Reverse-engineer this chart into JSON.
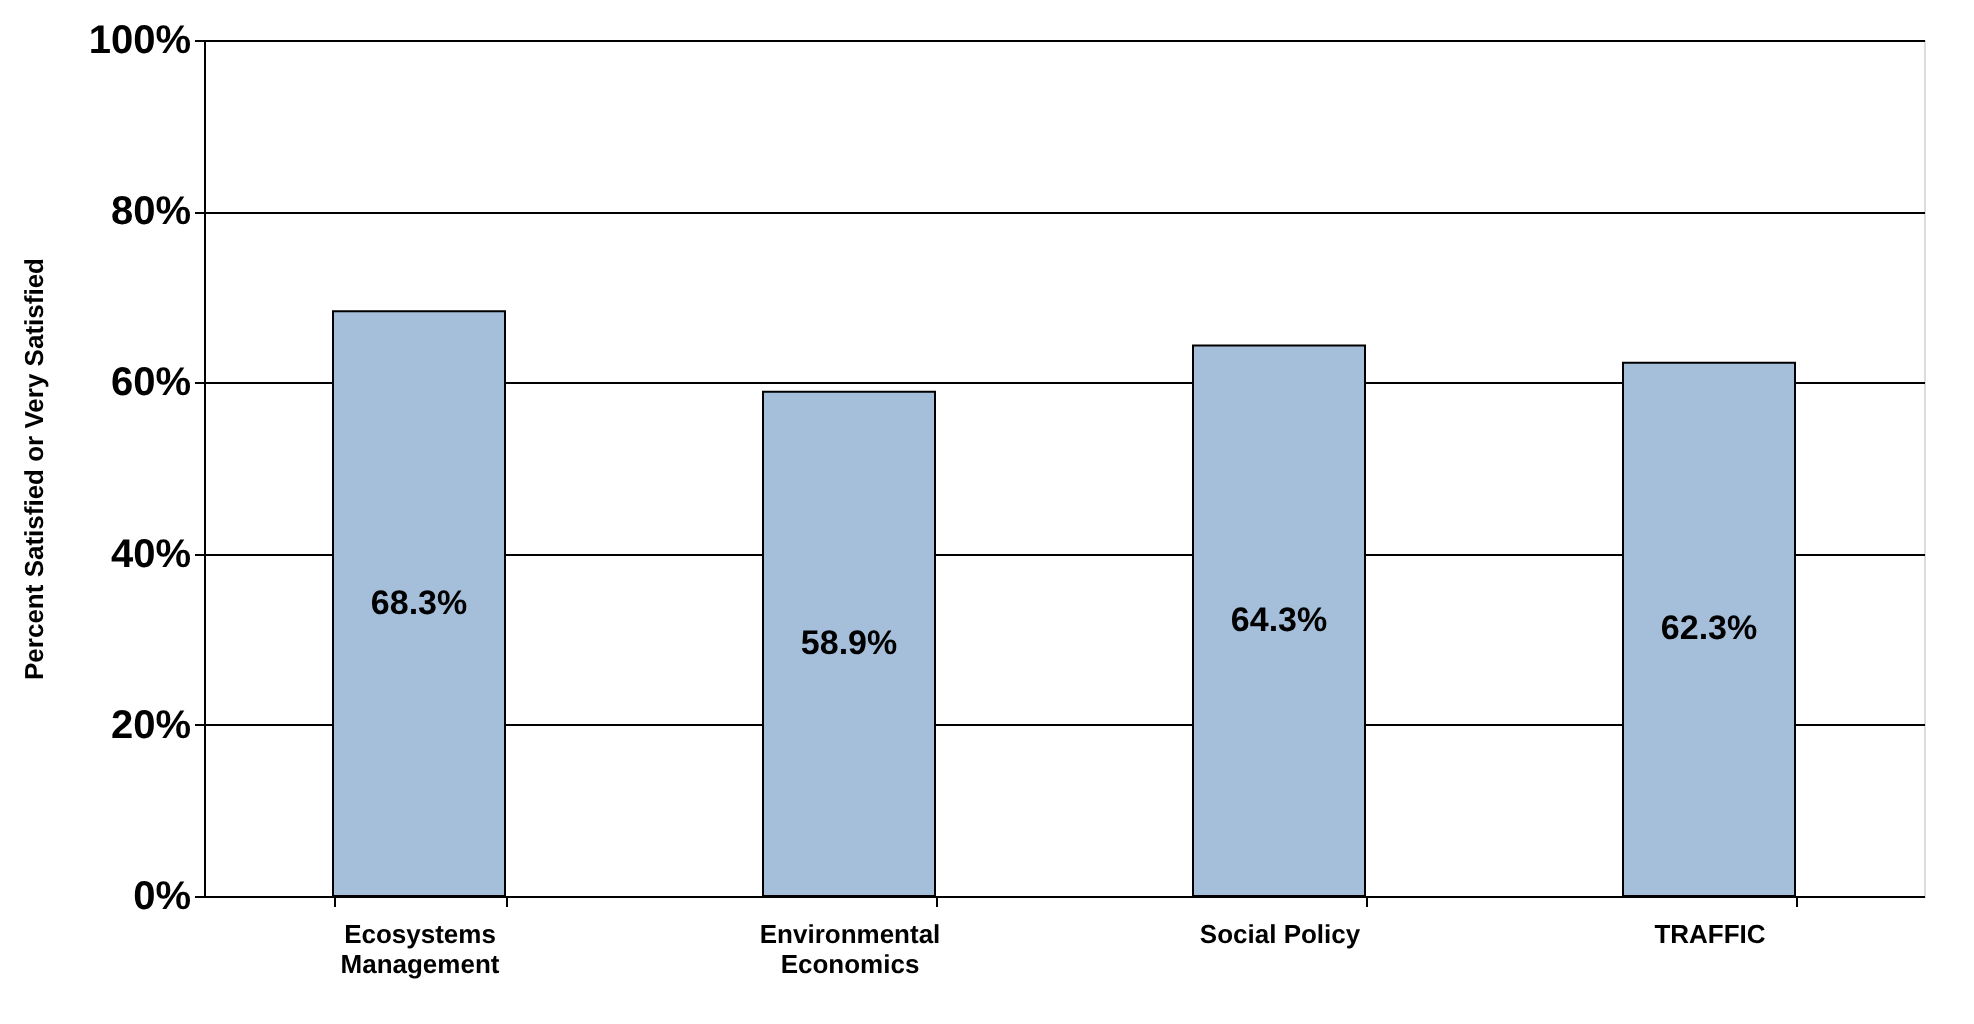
{
  "chart_data": {
    "type": "bar",
    "ylabel": "Percent  Satisfied or Very Satisfied",
    "categories": [
      "Ecosystems Management",
      "Environmental Economics",
      "Social Policy",
      "TRAFFIC"
    ],
    "values": [
      68.3,
      58.9,
      64.3,
      62.3
    ],
    "value_labels": [
      "68.3%",
      "58.9%",
      "64.3%",
      "62.3%"
    ],
    "color": "#a5bfdb",
    "ylim": [
      0,
      100
    ],
    "yticks": [
      {
        "value": 0,
        "label": "0%"
      },
      {
        "value": 20,
        "label": "20%"
      },
      {
        "value": 40,
        "label": "40%"
      },
      {
        "value": 60,
        "label": "60%"
      },
      {
        "value": 80,
        "label": "80%"
      },
      {
        "value": 100,
        "label": "100%"
      }
    ],
    "grid": "y",
    "legend": false
  }
}
